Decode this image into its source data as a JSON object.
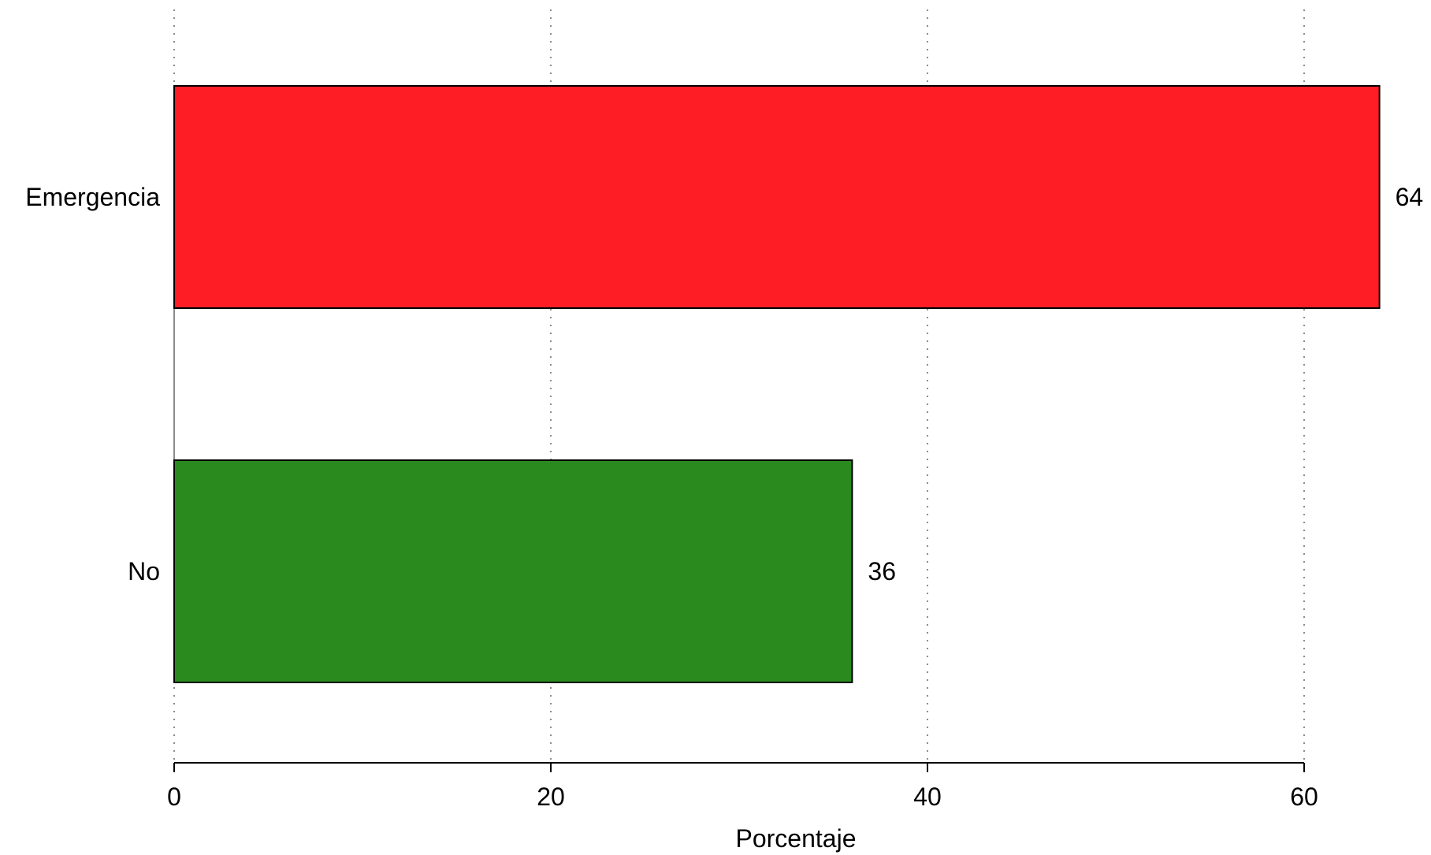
{
  "chart_data": {
    "type": "bar",
    "orientation": "horizontal",
    "categories": [
      "Emergencia",
      "No"
    ],
    "values": [
      64,
      36
    ],
    "value_labels": [
      "64",
      "36"
    ],
    "colors": [
      "#ff1d25",
      "#2a8a1e"
    ],
    "xlabel": "Porcentaje",
    "ylabel": "",
    "title": "",
    "xlim": [
      0,
      70
    ],
    "xticks": [
      0,
      20,
      40,
      60
    ],
    "xtick_labels": [
      "0",
      "20",
      "40",
      "60"
    ],
    "grid": true,
    "grid_style": "dotted-vertical",
    "legend": false
  }
}
